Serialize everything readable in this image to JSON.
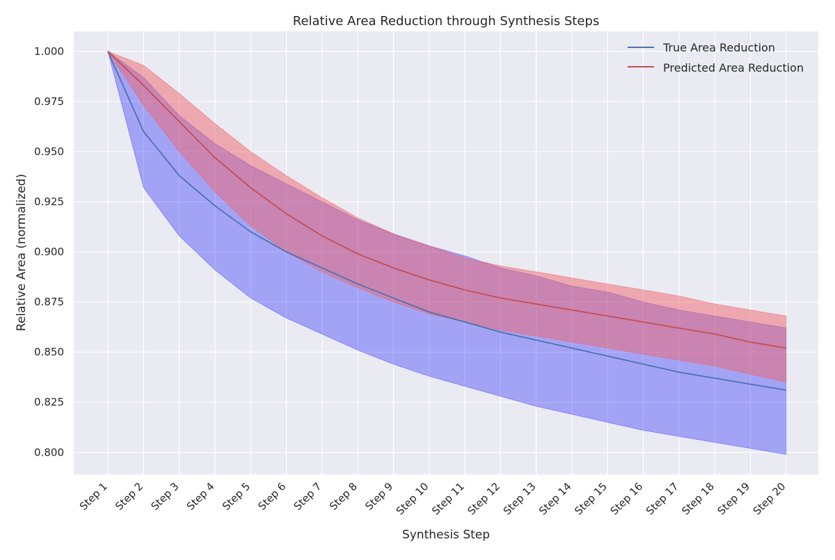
{
  "chart_data": {
    "type": "line",
    "title": "Relative Area Reduction through Synthesis Steps",
    "xlabel": "Synthesis Step",
    "ylabel": "Relative Area (normalized)",
    "categories": [
      "Step 1",
      "Step 2",
      "Step 3",
      "Step 4",
      "Step 5",
      "Step 6",
      "Step 7",
      "Step 8",
      "Step 9",
      "Step 10",
      "Step 11",
      "Step 12",
      "Step 13",
      "Step 14",
      "Step 15",
      "Step 16",
      "Step 17",
      "Step 18",
      "Step 19",
      "Step 20"
    ],
    "ylim": [
      0.789,
      1.01
    ],
    "yticks": [
      0.8,
      0.825,
      0.85,
      0.875,
      0.9,
      0.925,
      0.95,
      0.975,
      1.0
    ],
    "ytick_labels": [
      "0.800",
      "0.825",
      "0.850",
      "0.875",
      "0.900",
      "0.925",
      "0.950",
      "0.975",
      "1.000"
    ],
    "grid": true,
    "legend_position": "top-right",
    "series": [
      {
        "name": "True Area Reduction",
        "color": "#4c72b0",
        "fill_color": "#0000ff",
        "values": [
          1.0,
          0.96,
          0.938,
          0.923,
          0.91,
          0.9,
          0.892,
          0.884,
          0.877,
          0.87,
          0.865,
          0.86,
          0.856,
          0.852,
          0.848,
          0.844,
          0.84,
          0.837,
          0.834,
          0.831
        ],
        "lower": [
          1.0,
          0.932,
          0.908,
          0.891,
          0.877,
          0.867,
          0.859,
          0.851,
          0.844,
          0.838,
          0.833,
          0.828,
          0.823,
          0.819,
          0.815,
          0.811,
          0.808,
          0.805,
          0.802,
          0.799
        ],
        "upper": [
          1.0,
          0.987,
          0.968,
          0.954,
          0.943,
          0.934,
          0.925,
          0.916,
          0.909,
          0.903,
          0.898,
          0.892,
          0.888,
          0.883,
          0.88,
          0.875,
          0.871,
          0.868,
          0.865,
          0.862
        ]
      },
      {
        "name": "Predicted Area Reduction",
        "color": "#c44e52",
        "fill_color": "#f0666b",
        "values": [
          1.0,
          0.983,
          0.965,
          0.947,
          0.932,
          0.919,
          0.908,
          0.899,
          0.892,
          0.886,
          0.881,
          0.877,
          0.874,
          0.871,
          0.868,
          0.865,
          0.862,
          0.859,
          0.855,
          0.852
        ],
        "lower": [
          1.0,
          0.973,
          0.95,
          0.93,
          0.913,
          0.9,
          0.89,
          0.882,
          0.875,
          0.869,
          0.865,
          0.861,
          0.858,
          0.855,
          0.852,
          0.849,
          0.846,
          0.843,
          0.839,
          0.835
        ],
        "upper": [
          1.0,
          0.993,
          0.979,
          0.964,
          0.95,
          0.938,
          0.927,
          0.917,
          0.909,
          0.903,
          0.897,
          0.893,
          0.89,
          0.887,
          0.884,
          0.881,
          0.878,
          0.874,
          0.871,
          0.868
        ]
      }
    ]
  }
}
